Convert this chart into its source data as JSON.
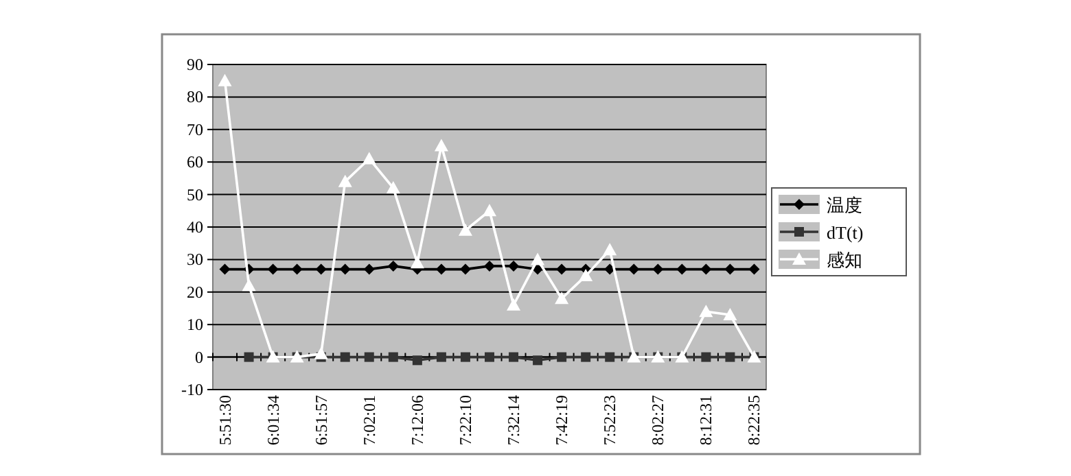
{
  "chart_data": {
    "type": "line",
    "categories": [
      "5:51:30",
      null,
      "6:01:34",
      null,
      "6:51:57",
      null,
      "7:02:01",
      null,
      "7:12:06",
      null,
      "7:22:10",
      null,
      "7:32:14",
      null,
      "7:42:19",
      null,
      "7:52:23",
      null,
      "8:02:27",
      null,
      "8:12:31",
      null,
      "8:22:35"
    ],
    "series": [
      {
        "name": "温度",
        "color": "#000000",
        "marker": "diamond",
        "values": [
          27,
          27,
          27,
          27,
          27,
          27,
          27,
          28,
          27,
          27,
          27,
          28,
          28,
          27,
          27,
          27,
          27,
          27,
          27,
          27,
          27,
          27,
          27
        ]
      },
      {
        "name": "dT(t)",
        "color": "#333333",
        "marker": "square",
        "values": [
          null,
          0,
          0,
          0,
          0,
          0,
          0,
          0,
          -1,
          0,
          0,
          0,
          0,
          -1,
          0,
          0,
          0,
          0,
          0,
          0,
          0,
          0,
          0
        ]
      },
      {
        "name": "感知",
        "color": "#ffffff",
        "marker": "triangle",
        "values": [
          85,
          22,
          0,
          0,
          1,
          54,
          61,
          52,
          29,
          65,
          39,
          45,
          16,
          30,
          18,
          25,
          33,
          0,
          0,
          0,
          14,
          13,
          0
        ]
      }
    ],
    "ylim": [
      -10,
      90
    ],
    "yticks": [
      -10,
      0,
      10,
      20,
      30,
      40,
      50,
      60,
      70,
      80,
      90
    ],
    "grid": "y",
    "legend": "right"
  }
}
